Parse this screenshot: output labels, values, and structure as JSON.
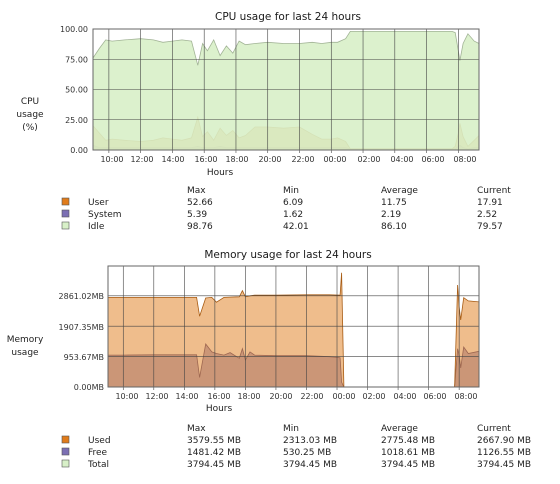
{
  "cpu_panel": {
    "title": "CPU usage for last 24 hours",
    "ylabel_lines": [
      "CPU",
      "usage",
      "(%)"
    ],
    "xlabel": "Hours",
    "columns": [
      "Max",
      "Min",
      "Average",
      "Current"
    ],
    "rows": [
      {
        "name": "User",
        "color": "#e07b1a",
        "values": [
          "52.66",
          "6.09",
          "11.75",
          "17.91"
        ]
      },
      {
        "name": "System",
        "color": "#7b6fb3",
        "values": [
          "5.39",
          "1.62",
          "2.19",
          "2.52"
        ]
      },
      {
        "name": "Idle",
        "color": "#d8f0c8",
        "values": [
          "98.76",
          "42.01",
          "86.10",
          "79.57"
        ]
      }
    ]
  },
  "memory_panel": {
    "title": "Memory usage for last 24 hours",
    "ylabel_lines": [
      "Memory",
      "usage"
    ],
    "xlabel": "Hours",
    "columns": [
      "Max",
      "Min",
      "Average",
      "Current"
    ],
    "rows": [
      {
        "name": "Used",
        "color": "#e07b1a",
        "values": [
          "3579.55 MB",
          "2313.03 MB",
          "2775.48 MB",
          "2667.90 MB"
        ]
      },
      {
        "name": "Free",
        "color": "#7b6fb3",
        "values": [
          "1481.42 MB",
          "530.25 MB",
          "1018.61 MB",
          "1126.55 MB"
        ]
      },
      {
        "name": "Total",
        "color": "#d8f0c8",
        "values": [
          "3794.45 MB",
          "3794.45 MB",
          "3794.45 MB",
          "3794.45 MB"
        ]
      }
    ]
  },
  "chart_data": [
    {
      "type": "area",
      "title": "CPU usage for last 24 hours",
      "xlabel": "Hours",
      "ylabel": "CPU usage (%)",
      "ylim": [
        0,
        100
      ],
      "ytick_labels": [
        "0.00",
        "25.00",
        "50.00",
        "75.00",
        "100.00"
      ],
      "ytick_values": [
        0,
        25,
        50,
        75,
        100
      ],
      "xlim": [
        9.0,
        33.3
      ],
      "xtick_labels": [
        "10:00",
        "12:00",
        "14:00",
        "16:00",
        "18:00",
        "20:00",
        "22:00",
        "00:00",
        "02:00",
        "04:00",
        "06:00",
        "08:00"
      ],
      "xtick_values": [
        10,
        12,
        14,
        16,
        18,
        20,
        22,
        24,
        26,
        28,
        30,
        32
      ],
      "grid": true,
      "series": [
        {
          "name": "Idle",
          "color": "#d8f0c8",
          "x": [
            9.0,
            9.4,
            9.8,
            10.2,
            11.0,
            12.0,
            12.8,
            13.4,
            14.0,
            14.6,
            15.2,
            15.6,
            15.9,
            16.2,
            16.6,
            17.0,
            17.4,
            17.8,
            18.2,
            18.6,
            19.2,
            20.0,
            21.0,
            22.0,
            22.8,
            23.4,
            24.0,
            24.4,
            24.9,
            25.2,
            26.0,
            28.0,
            30.0,
            31.6,
            31.8,
            32.0,
            32.1,
            32.3,
            32.6,
            33.0,
            33.3
          ],
          "values": [
            76,
            84,
            91,
            90,
            91,
            92,
            91,
            89,
            90,
            91,
            90,
            70,
            88,
            82,
            91,
            78,
            86,
            80,
            90,
            87,
            88,
            89,
            88,
            88,
            89,
            88,
            89,
            89,
            92,
            98,
            98,
            98,
            98,
            98,
            97,
            82,
            74,
            88,
            96,
            90,
            88
          ]
        },
        {
          "name": "User",
          "color": "#e07b1a",
          "x": [
            9.0,
            9.4,
            9.8,
            10.2,
            11.0,
            12.0,
            12.8,
            13.4,
            14.0,
            14.6,
            15.2,
            15.6,
            15.9,
            16.2,
            16.6,
            17.0,
            17.4,
            17.8,
            18.2,
            18.6,
            19.2,
            20.0,
            21.0,
            22.0,
            22.8,
            23.4,
            24.0,
            24.4,
            24.9,
            25.2,
            26.0,
            28.0,
            30.0,
            31.6,
            31.8,
            32.0,
            32.1,
            32.3,
            32.6,
            33.0,
            33.3
          ],
          "values": [
            20,
            14,
            8,
            9,
            8,
            7,
            8,
            10,
            9,
            8,
            10,
            27,
            11,
            15,
            8,
            18,
            12,
            16,
            10,
            12,
            19,
            19,
            18,
            19,
            13,
            9,
            9,
            10,
            7,
            1,
            1,
            1,
            1,
            1,
            3,
            14,
            22,
            11,
            3,
            8,
            12
          ]
        },
        {
          "name": "System",
          "color": "#7b6fb3",
          "x": [
            9.0,
            9.4,
            9.8,
            10.2,
            11.0,
            12.0,
            12.8,
            13.4,
            14.0,
            14.6,
            15.2,
            15.6,
            15.9,
            16.2,
            16.6,
            17.0,
            17.4,
            17.8,
            18.2,
            18.6,
            19.2,
            20.0,
            21.0,
            22.0,
            22.8,
            23.4,
            24.0,
            24.4,
            24.9,
            25.2,
            26.0,
            28.0,
            30.0,
            31.6,
            31.8,
            32.0,
            32.1,
            32.3,
            32.6,
            33.0,
            33.3
          ],
          "values": [
            4,
            2,
            2,
            2,
            2,
            2,
            2,
            2,
            2,
            2,
            2,
            3,
            2,
            2,
            2,
            3,
            2,
            2,
            2,
            2,
            2,
            2,
            2,
            2,
            2,
            2,
            2,
            2,
            2,
            1,
            1,
            1,
            1,
            1,
            1,
            3,
            4,
            2,
            1,
            2,
            2
          ]
        }
      ]
    },
    {
      "type": "area",
      "title": "Memory usage for last 24 hours",
      "xlabel": "Hours",
      "ylabel": "Memory usage",
      "ylim": [
        0,
        3794.45
      ],
      "ytick_labels": [
        "0.00MB",
        "953.67MB",
        "1907.35MB",
        "2861.02MB"
      ],
      "ytick_values": [
        0,
        953.67,
        1907.35,
        2861.02
      ],
      "xlim": [
        9.0,
        33.3
      ],
      "xtick_labels": [
        "10:00",
        "12:00",
        "14:00",
        "16:00",
        "18:00",
        "20:00",
        "22:00",
        "00:00",
        "02:00",
        "04:00",
        "06:00",
        "08:00"
      ],
      "xtick_values": [
        10,
        12,
        14,
        16,
        18,
        20,
        22,
        24,
        26,
        28,
        30,
        32
      ],
      "grid": true,
      "series": [
        {
          "name": "Used",
          "color": "#e07b1a",
          "x": [
            9.0,
            10.0,
            12.0,
            14.0,
            14.8,
            15.0,
            15.4,
            15.8,
            16.1,
            16.6,
            17.0,
            17.6,
            17.8,
            18.0,
            18.3,
            18.6,
            20.0,
            22.0,
            23.5,
            24.2,
            24.3,
            24.45,
            26.0,
            28.0,
            30.0,
            31.7,
            31.9,
            32.0,
            32.1,
            32.3,
            32.6,
            33.3
          ],
          "values": [
            2810,
            2810,
            2810,
            2810,
            2810,
            2220,
            2790,
            2810,
            2660,
            2810,
            2820,
            2830,
            3020,
            2830,
            2860,
            2880,
            2880,
            2890,
            2890,
            2880,
            3580,
            0,
            0,
            0,
            0,
            0,
            3200,
            2500,
            2100,
            2800,
            2700,
            2670
          ]
        },
        {
          "name": "Free",
          "color": "#7b6fb3",
          "x": [
            9.0,
            10.0,
            12.0,
            14.0,
            14.8,
            15.0,
            15.4,
            15.8,
            16.1,
            16.6,
            17.0,
            17.6,
            17.8,
            18.0,
            18.3,
            18.6,
            20.0,
            22.0,
            23.5,
            24.2,
            24.3,
            24.45,
            26.0,
            28.0,
            30.0,
            31.7,
            31.9,
            32.0,
            32.1,
            32.3,
            32.6,
            33.3
          ],
          "values": [
            1000,
            1000,
            1010,
            1010,
            1010,
            300,
            1350,
            1100,
            1050,
            1000,
            1080,
            900,
            1200,
            850,
            1100,
            1000,
            980,
            980,
            950,
            920,
            150,
            0,
            0,
            0,
            0,
            0,
            1200,
            1000,
            600,
            1250,
            1050,
            1120
          ]
        },
        {
          "name": "Total",
          "color": "#d8f0c8",
          "x": [
            9.0,
            33.3
          ],
          "values": [
            3794.45,
            3794.45
          ]
        }
      ]
    }
  ]
}
